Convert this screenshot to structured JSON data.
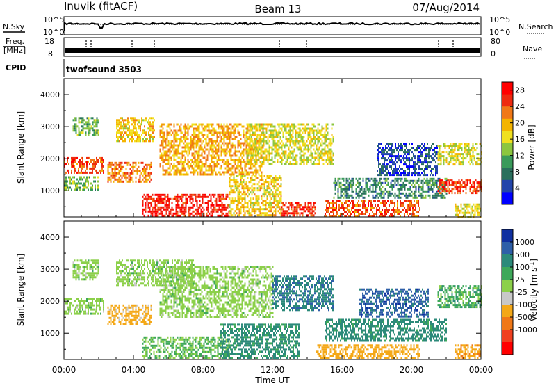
{
  "header": {
    "station": "Inuvik (fitACF)",
    "beam": "Beam 13",
    "date": "07/Aug/2014"
  },
  "strips": {
    "nsky_label": "N.Sky",
    "nsky_ticks": [
      "10^5",
      "10^0"
    ],
    "nsearch_label": "N.Search",
    "nsearch_ticks": [
      "10^5",
      "10^0"
    ],
    "freq_label": "Freq.",
    "freq_unit": "[MHz]",
    "freq_ticks": [
      "18",
      "8"
    ],
    "nave_label": "Nave",
    "nave_ticks": [
      "80",
      "0"
    ],
    "cpid_label": "CPID",
    "cpid_value": "twofsound 3503"
  },
  "x_axis": {
    "label": "Time UT",
    "ticks": [
      "00:00",
      "04:00",
      "08:00",
      "12:00",
      "16:00",
      "20:00",
      "00:00"
    ]
  },
  "chart_data": [
    {
      "type": "heatmap",
      "title": "",
      "xlabel": "Time UT",
      "ylabel": "Slant Range [km]",
      "x_range_hours": [
        0,
        24
      ],
      "ylim": [
        180,
        4500
      ],
      "y_ticks": [
        1000,
        2000,
        3000,
        4000
      ],
      "colorbar": {
        "label": "Power [dB]",
        "ticks": [
          "4",
          "8",
          "12",
          "16",
          "20",
          "24",
          "28"
        ],
        "tick_values": [
          4,
          8,
          12,
          16,
          20,
          24,
          28
        ],
        "range": [
          0,
          30
        ],
        "colors": [
          "#0000ff",
          "#2244aa",
          "#2a6f5c",
          "#3a9a5a",
          "#8cc63f",
          "#f0e020",
          "#f4b400",
          "#f07818",
          "#ee2a10",
          "#ff0000"
        ]
      },
      "regions": [
        {
          "t0": 0.0,
          "t1": 2.3,
          "r0": 1550,
          "r1": 2050,
          "value": 24
        },
        {
          "t0": 0.0,
          "t1": 2.0,
          "r0": 1050,
          "r1": 1450,
          "value": 12
        },
        {
          "t0": 0.5,
          "t1": 2.0,
          "r0": 2750,
          "r1": 3300,
          "value": 12
        },
        {
          "t0": 2.5,
          "t1": 5.0,
          "r0": 1250,
          "r1": 1900,
          "value": 22
        },
        {
          "t0": 3.0,
          "t1": 5.2,
          "r0": 2550,
          "r1": 3300,
          "value": 18
        },
        {
          "t0": 4.5,
          "t1": 9.5,
          "r0": 230,
          "r1": 900,
          "value": 27
        },
        {
          "t0": 5.5,
          "t1": 11.5,
          "r0": 1500,
          "r1": 3100,
          "value": 20
        },
        {
          "t0": 9.5,
          "t1": 12.5,
          "r0": 250,
          "r1": 1500,
          "value": 18
        },
        {
          "t0": 10.5,
          "t1": 15.5,
          "r0": 1800,
          "r1": 3100,
          "value": 16
        },
        {
          "t0": 12.5,
          "t1": 14.5,
          "r0": 250,
          "r1": 650,
          "value": 26
        },
        {
          "t0": 15.0,
          "t1": 20.5,
          "r0": 200,
          "r1": 700,
          "value": 24
        },
        {
          "t0": 15.5,
          "t1": 22.0,
          "r0": 750,
          "r1": 1400,
          "value": 9
        },
        {
          "t0": 18.0,
          "t1": 21.5,
          "r0": 1500,
          "r1": 2500,
          "value": 5
        },
        {
          "t0": 21.5,
          "t1": 24.0,
          "r0": 950,
          "r1": 1350,
          "value": 25
        },
        {
          "t0": 21.5,
          "t1": 24.0,
          "r0": 1800,
          "r1": 2500,
          "value": 16
        },
        {
          "t0": 22.5,
          "t1": 24.0,
          "r0": 200,
          "r1": 600,
          "value": 17
        }
      ]
    },
    {
      "type": "heatmap",
      "title": "",
      "xlabel": "Time UT",
      "ylabel": "Slant Range [km]",
      "x_range_hours": [
        0,
        24
      ],
      "ylim": [
        180,
        4500
      ],
      "y_ticks": [
        1000,
        2000,
        3000,
        4000
      ],
      "colorbar": {
        "label": "Velocity [m s^-1]",
        "ticks": [
          "1000",
          "500",
          "100",
          "25",
          "-25",
          "-100",
          "-500",
          "-1000"
        ],
        "colors": [
          "#1030a0",
          "#2e5fa8",
          "#2c8a7a",
          "#3ea85a",
          "#8cd04a",
          "#c8c8c8",
          "#f4a818",
          "#f07818",
          "#f04020",
          "#ff0000"
        ]
      },
      "regions": [
        {
          "t0": 0.0,
          "t1": 2.3,
          "r0": 1600,
          "r1": 2100,
          "value": 0
        },
        {
          "t0": 0.5,
          "t1": 2.0,
          "r0": 2700,
          "r1": 3300,
          "value": 0
        },
        {
          "t0": 2.5,
          "t1": 5.0,
          "r0": 1300,
          "r1": 1900,
          "value": -200
        },
        {
          "t0": 3.0,
          "t1": 7.5,
          "r0": 2500,
          "r1": 3300,
          "value": 0
        },
        {
          "t0": 4.5,
          "t1": 9.5,
          "r0": 230,
          "r1": 900,
          "value": 30
        },
        {
          "t0": 5.5,
          "t1": 12.0,
          "r0": 1500,
          "r1": 3100,
          "value": 0
        },
        {
          "t0": 9.0,
          "t1": 13.5,
          "r0": 250,
          "r1": 1300,
          "value": 150
        },
        {
          "t0": 12.0,
          "t1": 15.5,
          "r0": 1700,
          "r1": 2800,
          "value": 400
        },
        {
          "t0": 14.5,
          "t1": 20.5,
          "r0": 250,
          "r1": 650,
          "value": -300
        },
        {
          "t0": 15.0,
          "t1": 22.0,
          "r0": 750,
          "r1": 1450,
          "value": 200
        },
        {
          "t0": 17.0,
          "t1": 21.0,
          "r0": 1500,
          "r1": 2400,
          "value": 700
        },
        {
          "t0": 21.5,
          "t1": 24.0,
          "r0": 1800,
          "r1": 2500,
          "value": 60
        },
        {
          "t0": 22.5,
          "t1": 24.0,
          "r0": 200,
          "r1": 650,
          "value": -400
        }
      ]
    }
  ]
}
